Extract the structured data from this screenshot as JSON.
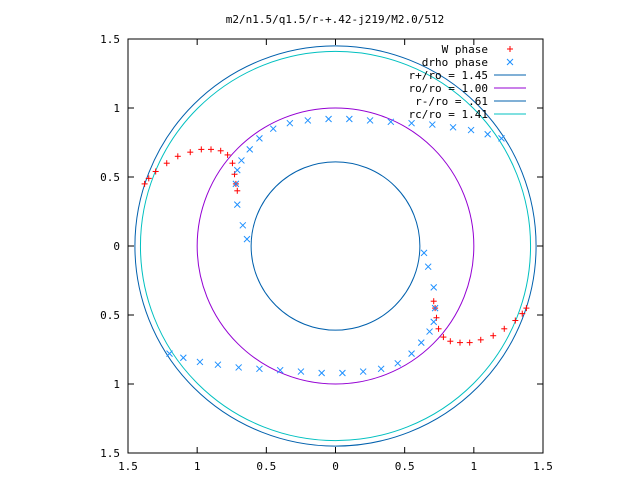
{
  "chart_data": {
    "type": "scatter",
    "title": "m2/n1.5/q1.5/r-+.42-j219/M2.0/512",
    "xlabel": "",
    "ylabel": "",
    "xlim": [
      -1.5,
      1.5
    ],
    "ylim": [
      -1.5,
      1.5
    ],
    "x_ticks": [
      -1.5,
      -1,
      -0.5,
      0,
      0.5,
      1,
      1.5
    ],
    "y_ticks": [
      -1.5,
      -1,
      -0.5,
      0,
      0.5,
      1,
      1.5
    ],
    "x_tick_labels": [
      "1.5",
      "1",
      "0.5",
      "0",
      "0.5",
      "1",
      "1.5"
    ],
    "y_tick_labels": [
      "1.5",
      "1",
      "0.5",
      "0",
      "0.5",
      "1",
      "1.5"
    ],
    "grid": false,
    "legend_position": "top-right",
    "circles": [
      {
        "label": "r+/ro = 1.45",
        "radius": 1.45,
        "color": "#0060ad"
      },
      {
        "label": "ro/ro = 1.00",
        "radius": 1.0,
        "color": "#9400d3"
      },
      {
        "label": "r-/ro = .61",
        "radius": 0.61,
        "color": "#0060ad"
      },
      {
        "label": "rc/ro = 1.41",
        "radius": 1.41,
        "color": "#00c0c0"
      }
    ],
    "series": [
      {
        "name": "W phase",
        "marker": "plus",
        "color": "#ff0000",
        "x": [
          -1.38,
          -1.35,
          -1.3,
          -1.22,
          -1.14,
          -1.05,
          -0.97,
          -0.9,
          -0.83,
          -0.78,
          -0.745,
          -0.73,
          -0.72,
          -0.71,
          1.38,
          1.35,
          1.3,
          1.22,
          1.14,
          1.05,
          0.97,
          0.9,
          0.83,
          0.78,
          0.745,
          0.73,
          0.72,
          0.71
        ],
        "y": [
          0.45,
          0.49,
          0.54,
          0.6,
          0.65,
          0.68,
          0.7,
          0.7,
          0.69,
          0.66,
          0.6,
          0.52,
          0.45,
          0.4,
          -0.45,
          -0.49,
          -0.54,
          -0.6,
          -0.65,
          -0.68,
          -0.7,
          -0.7,
          -0.69,
          -0.66,
          -0.6,
          -0.52,
          -0.45,
          -0.4
        ]
      },
      {
        "name": "drho phase",
        "marker": "cross",
        "color": "#1e90ff",
        "x": [
          -0.64,
          -0.67,
          -0.71,
          -0.72,
          -0.71,
          -0.68,
          -0.62,
          -0.55,
          -0.45,
          -0.33,
          -0.2,
          -0.05,
          0.1,
          0.25,
          0.4,
          0.55,
          0.7,
          0.85,
          0.98,
          1.1,
          1.2,
          0.64,
          0.67,
          0.71,
          0.72,
          0.71,
          0.68,
          0.62,
          0.55,
          0.45,
          0.33,
          0.2,
          0.05,
          -0.1,
          -0.25,
          -0.4,
          -0.55,
          -0.7,
          -0.85,
          -0.98,
          -1.1,
          -1.2
        ],
        "y": [
          0.05,
          0.15,
          0.3,
          0.45,
          0.55,
          0.62,
          0.7,
          0.78,
          0.85,
          0.89,
          0.91,
          0.92,
          0.92,
          0.91,
          0.9,
          0.89,
          0.88,
          0.86,
          0.84,
          0.81,
          0.78,
          -0.05,
          -0.15,
          -0.3,
          -0.45,
          -0.55,
          -0.62,
          -0.7,
          -0.78,
          -0.85,
          -0.89,
          -0.91,
          -0.92,
          -0.92,
          -0.91,
          -0.9,
          -0.89,
          -0.88,
          -0.86,
          -0.84,
          -0.81,
          -0.78
        ]
      }
    ]
  }
}
